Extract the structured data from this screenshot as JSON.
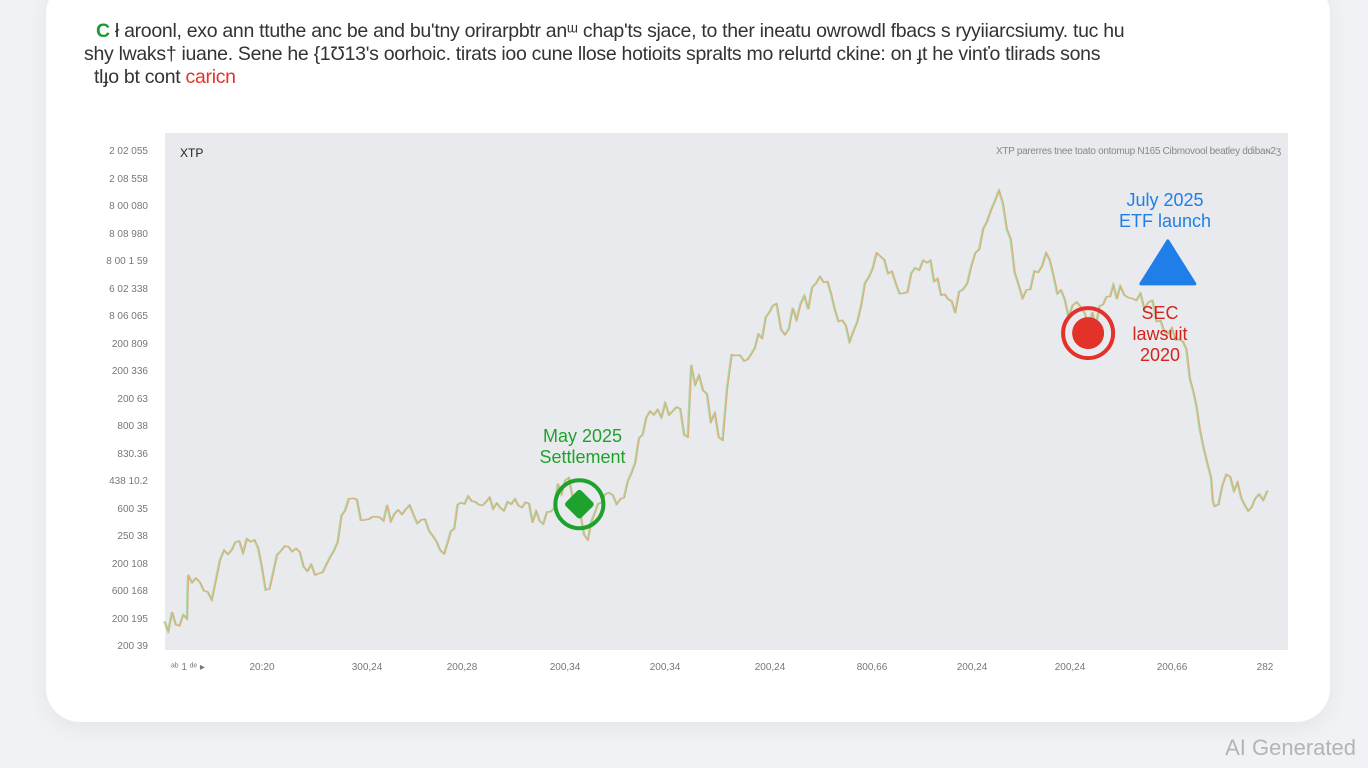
{
  "caption": {
    "line1_lead": "C",
    "line1": " ł aroonl, exo ann ttuthe anc be and bu'tny orirarpbtr anᵚ chap'ts sjace, to ther ineatu owrowdl fbacs s ryyiiarcsiumy. tuc hu",
    "line2": "shy lwaks† iuane. Sene he {1Ʊ13's oorhoic. tirats ioo cune llose hotioits spralts mo relurtd ckine: on ɟt he vinťo tlirads sons",
    "line3": "tlɟo bt cont ",
    "line3_highlight": "caricn"
  },
  "watermark": "AI Generated",
  "colors": {
    "line": "#d8b27a",
    "line_green": "#6cc86a",
    "green": "#1fa12e",
    "red": "#e2322a",
    "blue": "#1f7ee8",
    "plot_bg": "#e9eaee"
  },
  "chart_data": {
    "type": "line",
    "series_name": "XTP",
    "legend_text": "XTP parerres tnee toato ontomup N165 Cibmovool beatley ddibaɴ2ʒ",
    "ylabel": "",
    "xlabel": "",
    "y_tick_labels": [
      "2 02 055",
      "2 08 558",
      "8 00 080",
      "8 08 980",
      "8 00 1 59",
      "6 02 338",
      "8 06 065",
      "200 809",
      "200 336",
      "200 63",
      "800 38",
      "830.36",
      "438 10.2",
      "600 35",
      "250 38",
      "200 108",
      "600 168",
      "200 195",
      "200 39"
    ],
    "x_tick_lead": "ᵃᵇ 1 ᵈᵉ ▸",
    "x_tick_labels": [
      "20:20",
      "300,24",
      "200,28",
      "200,34",
      "200,34",
      "200,24",
      "800,66",
      "200,24",
      "200,24",
      "200,66",
      "282"
    ],
    "xlim": [
      0,
      100
    ],
    "ylim": [
      0,
      100
    ],
    "x": [
      0,
      2,
      2.1,
      4.2,
      5.3,
      8,
      9,
      10.7,
      13.4,
      15.1,
      16.4,
      18.2,
      20.8,
      23.2,
      24.9,
      26.4,
      29.9,
      31.2,
      33.4,
      36,
      37.7,
      38.9,
      40.6,
      42.9,
      45.6,
      46.6,
      46.9,
      49.7,
      50.5,
      51.6,
      54.5,
      54.9,
      58.7,
      61,
      63.4,
      65.8,
      67.9,
      70.4,
      72.2,
      74.3,
      76.4,
      78.5,
      80.5,
      81.6,
      82.3,
      84.2,
      85.1,
      86.9,
      88.7,
      90.7,
      92.2,
      93.2,
      93.5,
      94.9,
      96.2,
      97.1,
      98.2
    ],
    "y": [
      5.5,
      6,
      14.5,
      9.7,
      19.3,
      21.3,
      11.6,
      20.1,
      14.5,
      19.3,
      29.2,
      25.3,
      27.1,
      25.3,
      18.6,
      28.5,
      27.5,
      29.2,
      25,
      33.3,
      21.3,
      28.5,
      29.2,
      45,
      47,
      41.2,
      55.1,
      40.6,
      57.1,
      55.9,
      67,
      62,
      71.1,
      59.6,
      76.8,
      69,
      74.9,
      65.2,
      76.8,
      88.9,
      68,
      76.8,
      64.4,
      66.3,
      62.5,
      68.4,
      70.4,
      69,
      63.7,
      59.6,
      42.6,
      33.3,
      27.8,
      33.5,
      28,
      29.2,
      30.8
    ],
    "annotations": [
      {
        "label_line1": "May 2025",
        "label_line2": "Settlement",
        "marker": "circle-diamond",
        "color": "green",
        "x": 36.9,
        "y": 28.2
      },
      {
        "label_line1": "SEC",
        "label_line2": "lawsuit",
        "label_line3": "2020",
        "marker": "circle-dot",
        "color": "red",
        "x": 82.2,
        "y": 61.3
      },
      {
        "label_line1": "July 2025",
        "label_line2": "ETF launch",
        "marker": "triangle",
        "color": "blue",
        "x": 89.3,
        "y": 74.5
      }
    ]
  }
}
